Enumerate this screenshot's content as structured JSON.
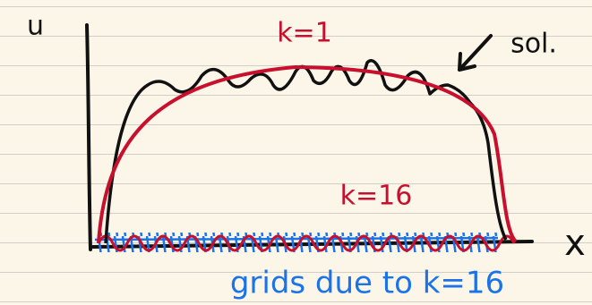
{
  "axes": {
    "y_label": "u",
    "x_label": "x"
  },
  "annotations": {
    "k1": "k=1",
    "sol": "sol.",
    "k16": "k=16",
    "grids": "grids due to k=16"
  }
}
